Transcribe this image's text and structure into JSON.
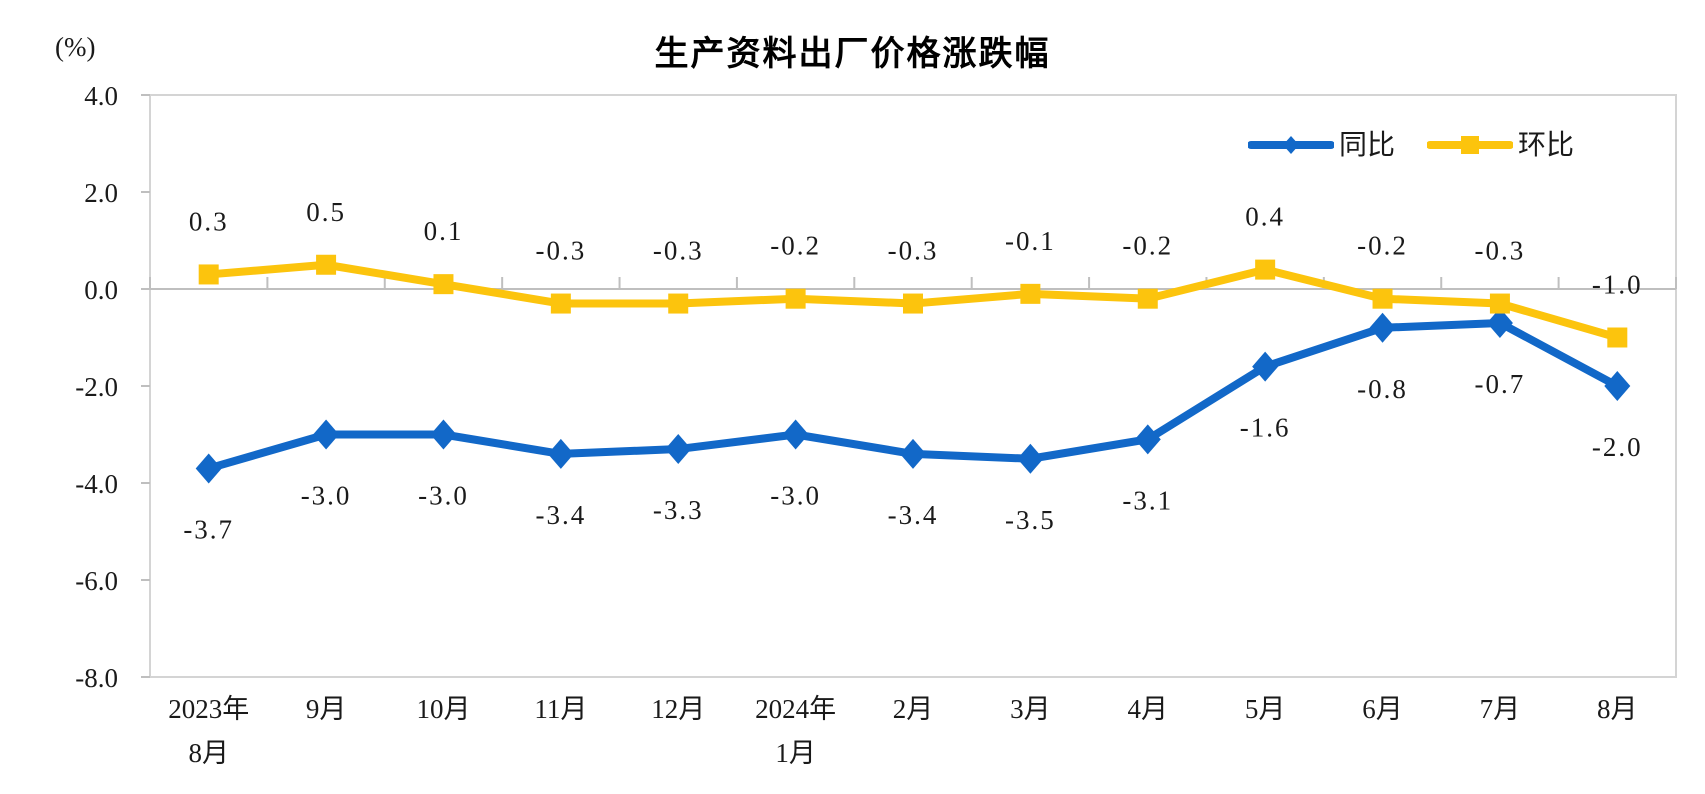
{
  "chart_data": {
    "type": "line",
    "title": "生产资料出厂价格涨跌幅",
    "unit_label": "(%)",
    "categories": [
      {
        "line1": "2023年",
        "line2": "8月"
      },
      {
        "line1": "9月"
      },
      {
        "line1": "10月"
      },
      {
        "line1": "11月"
      },
      {
        "line1": "12月"
      },
      {
        "line1": "2024年",
        "line2": "1月"
      },
      {
        "line1": "2月"
      },
      {
        "line1": "3月"
      },
      {
        "line1": "4月"
      },
      {
        "line1": "5月"
      },
      {
        "line1": "6月"
      },
      {
        "line1": "7月"
      },
      {
        "line1": "8月"
      }
    ],
    "y_axis": {
      "min": -8.0,
      "max": 4.0,
      "step": 2.0,
      "tick_labels": [
        "4.0",
        "2.0",
        "0.0",
        "-2.0",
        "-4.0",
        "-6.0",
        "-8.0"
      ]
    },
    "series": [
      {
        "name": "同比",
        "color": "#1268C8",
        "marker": "diamond",
        "label_position": "below",
        "values": [
          -3.7,
          -3.0,
          -3.0,
          -3.4,
          -3.3,
          -3.0,
          -3.4,
          -3.5,
          -3.1,
          -1.6,
          -0.8,
          -0.7,
          -2.0
        ],
        "labels": [
          "-3.7",
          "-3.0",
          "-3.0",
          "-3.4",
          "-3.3",
          "-3.0",
          "-3.4",
          "-3.5",
          "-3.1",
          "-1.6",
          "-0.8",
          "-0.7",
          "-2.0"
        ]
      },
      {
        "name": "环比",
        "color": "#FCC40D",
        "marker": "square",
        "label_position": "above",
        "values": [
          0.3,
          0.5,
          0.1,
          -0.3,
          -0.3,
          -0.2,
          -0.3,
          -0.1,
          -0.2,
          0.4,
          -0.2,
          -0.3,
          -1.0
        ],
        "labels": [
          "0.3",
          "0.5",
          "0.1",
          "-0.3",
          "-0.3",
          "-0.2",
          "-0.3",
          "-0.1",
          "-0.2",
          "0.4",
          "-0.2",
          "-0.3",
          "-1.0"
        ]
      }
    ],
    "legend_position": "top-right",
    "grid": "zero-line-only",
    "colors": {
      "axis": "#BFBFBF",
      "frame": "#D4D4D4",
      "text": "#1A1A1A"
    }
  }
}
